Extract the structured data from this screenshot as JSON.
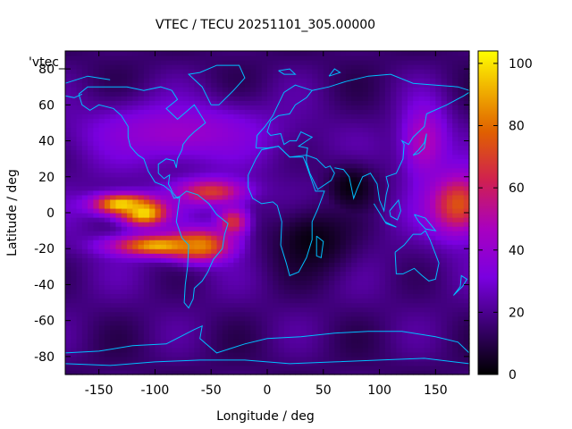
{
  "chart_data": {
    "type": "heatmap",
    "title": "VTEC / TECU 20251101_305.00000",
    "xlabel": "Longitude / deg",
    "ylabel": "Latitude / deg",
    "key_label": "'vtec_",
    "xlim": [
      -180,
      180
    ],
    "ylim": [
      -90,
      90
    ],
    "xticks": [
      -150,
      -100,
      -50,
      0,
      50,
      100,
      150
    ],
    "yticks": [
      -80,
      -60,
      -40,
      -20,
      0,
      20,
      40,
      60,
      80
    ],
    "colorbar": {
      "range": [
        0,
        104
      ],
      "ticks": [
        0,
        20,
        40,
        60,
        80,
        100
      ]
    },
    "grid_step_deg": {
      "lon": 5,
      "lat": 2.5
    },
    "features": [
      {
        "lon": -130,
        "lat": 5,
        "value": 100,
        "sigma_lon": 18,
        "sigma_lat": 4
      },
      {
        "lon": -110,
        "lat": 0,
        "value": 100,
        "sigma_lon": 14,
        "sigma_lat": 5
      },
      {
        "lon": -95,
        "lat": -18,
        "value": 95,
        "sigma_lon": 30,
        "sigma_lat": 4
      },
      {
        "lon": -60,
        "lat": -18,
        "value": 85,
        "sigma_lon": 18,
        "sigma_lat": 6
      },
      {
        "lon": -30,
        "lat": -5,
        "value": 70,
        "sigma_lon": 10,
        "sigma_lat": 6
      },
      {
        "lon": -50,
        "lat": 12,
        "value": 70,
        "sigma_lon": 22,
        "sigma_lat": 5
      },
      {
        "lon": 170,
        "lat": 5,
        "value": 75,
        "sigma_lon": 18,
        "sigma_lat": 12
      },
      {
        "lon": 140,
        "lat": 40,
        "value": 50,
        "sigma_lon": 15,
        "sigma_lat": 15
      },
      {
        "lon": -80,
        "lat": 45,
        "value": 42,
        "sigma_lon": 60,
        "sigma_lat": 12
      },
      {
        "lon": 75,
        "lat": 15,
        "value": 0,
        "sigma_lon": 18,
        "sigma_lat": 10
      },
      {
        "lon": 40,
        "lat": -15,
        "value": 5,
        "sigma_lon": 30,
        "sigma_lat": 15
      }
    ],
    "background": 22,
    "coastlines_color": "#00bfff",
    "colormap": "gnuplot default (black-purple-red-orange-yellow)"
  }
}
